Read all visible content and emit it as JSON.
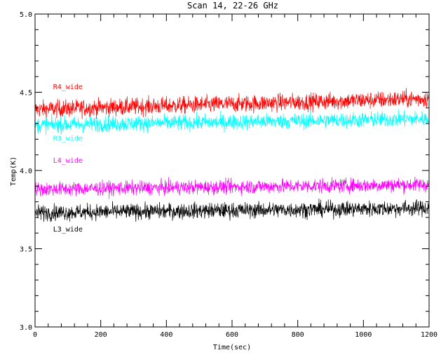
{
  "chart_data": {
    "type": "line",
    "title": "Scan 14, 22-26 GHz",
    "xlabel": "Time(sec)",
    "ylabel": "Temp(K)",
    "xlim": [
      0,
      1200
    ],
    "ylim": [
      3.0,
      5.0
    ],
    "xticks": [
      0,
      200,
      400,
      600,
      800,
      1000,
      1200
    ],
    "yticks": [
      3.0,
      3.5,
      4.0,
      4.5,
      5.0
    ],
    "xtick_labels": [
      "0",
      "200",
      "400",
      "600",
      "800",
      "1000",
      "1200"
    ],
    "ytick_labels": [
      "3.0",
      "3.5",
      "4.0",
      "4.5",
      "5.0"
    ],
    "grid": false,
    "series": [
      {
        "name": "R4_wide",
        "color": "#ff0000",
        "start": 4.39,
        "end": 4.46,
        "noise": 0.055,
        "label_at": [
          55,
          4.52
        ]
      },
      {
        "name": "R3_wide",
        "color": "#00ffff",
        "start": 4.29,
        "end": 4.33,
        "noise": 0.05,
        "label_at": [
          55,
          4.19
        ]
      },
      {
        "name": "L4_wide",
        "color": "#ff00ff",
        "start": 3.88,
        "end": 3.91,
        "noise": 0.045,
        "label_at": [
          55,
          4.05
        ]
      },
      {
        "name": "L3_wide",
        "color": "#000000",
        "start": 3.73,
        "end": 3.76,
        "noise": 0.05,
        "label_at": [
          55,
          3.61
        ]
      }
    ]
  }
}
